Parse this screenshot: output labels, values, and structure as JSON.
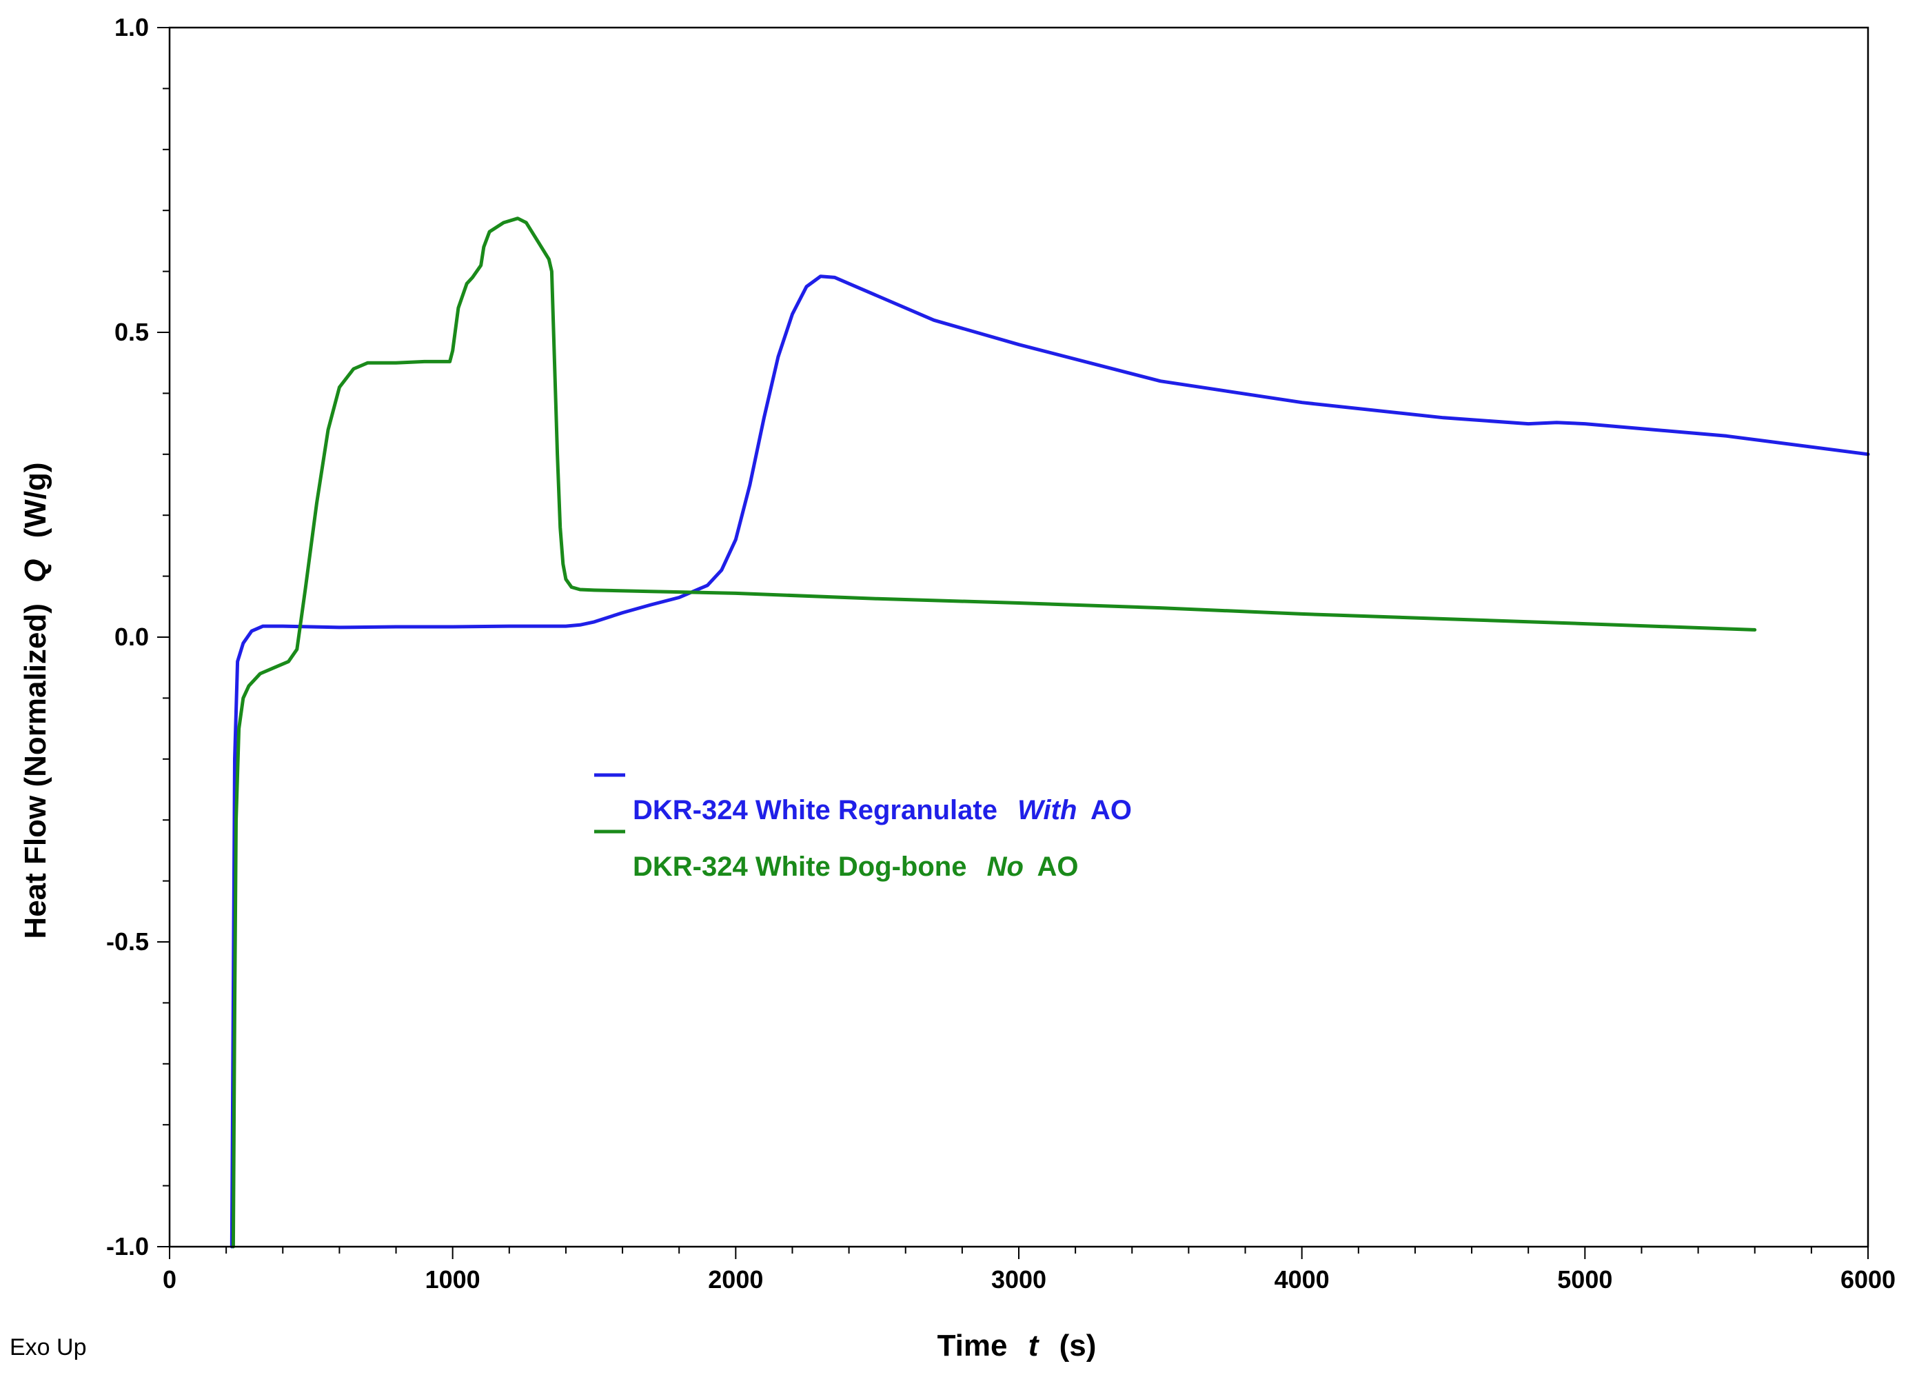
{
  "chart_data": {
    "type": "line",
    "xlabel_prefix": "Time",
    "xlabel_var": "t",
    "xlabel_unit": "(s)",
    "ylabel_prefix": "Heat Flow",
    "ylabel_mid": "(Normalized)",
    "ylabel_var": "Q",
    "ylabel_unit": "(W/g)",
    "xlim": [
      0,
      6000
    ],
    "ylim": [
      -1.0,
      1.0
    ],
    "x_ticks": [
      0,
      1000,
      2000,
      3000,
      4000,
      5000,
      6000
    ],
    "x_tick_labels": [
      "0",
      "1000",
      "2000",
      "3000",
      "4000",
      "5000",
      "6000"
    ],
    "y_ticks": [
      -1.0,
      -0.5,
      0.0,
      0.5,
      1.0
    ],
    "y_tick_labels": [
      "-1.0",
      "-0.5",
      "0.0",
      "0.5",
      "1.0"
    ],
    "note": "Exo Up",
    "series": [
      {
        "name": "DKR-324 White Regranulate With AO",
        "name_parts": [
          "DKR-324 White Regranulate",
          "With",
          "AO"
        ],
        "color": "#1f1fe8",
        "x": [
          220,
          225,
          230,
          240,
          260,
          290,
          330,
          400,
          600,
          800,
          1000,
          1200,
          1400,
          1450,
          1500,
          1600,
          1700,
          1800,
          1900,
          1950,
          2000,
          2050,
          2100,
          2150,
          2200,
          2250,
          2300,
          2350,
          2400,
          2500,
          2700,
          3000,
          3500,
          4000,
          4500,
          4800,
          4900,
          5000,
          5500,
          6000
        ],
        "y": [
          -1.0,
          -0.6,
          -0.2,
          -0.04,
          -0.01,
          0.01,
          0.018,
          0.018,
          0.016,
          0.017,
          0.017,
          0.018,
          0.018,
          0.02,
          0.025,
          0.04,
          0.053,
          0.065,
          0.085,
          0.11,
          0.16,
          0.25,
          0.36,
          0.46,
          0.53,
          0.575,
          0.592,
          0.59,
          0.58,
          0.56,
          0.52,
          0.48,
          0.42,
          0.385,
          0.36,
          0.35,
          0.352,
          0.35,
          0.33,
          0.3
        ]
      },
      {
        "name": "DKR-324 White Dog-bone No AO",
        "name_parts": [
          "DKR-324 White Dog-bone",
          "No",
          "AO"
        ],
        "color": "#1a8a1a",
        "x": [
          225,
          230,
          235,
          245,
          260,
          280,
          320,
          370,
          420,
          450,
          480,
          520,
          560,
          600,
          650,
          700,
          800,
          900,
          990,
          1000,
          1020,
          1050,
          1070,
          1100,
          1110,
          1130,
          1180,
          1230,
          1260,
          1300,
          1340,
          1350,
          1360,
          1370,
          1380,
          1390,
          1400,
          1420,
          1450,
          1500,
          1700,
          2000,
          2500,
          3000,
          3500,
          4000,
          4500,
          5000,
          5600
        ],
        "y": [
          -1.0,
          -0.6,
          -0.3,
          -0.15,
          -0.1,
          -0.08,
          -0.06,
          -0.05,
          -0.04,
          -0.02,
          0.08,
          0.22,
          0.34,
          0.41,
          0.44,
          0.45,
          0.45,
          0.452,
          0.452,
          0.47,
          0.54,
          0.58,
          0.59,
          0.61,
          0.64,
          0.665,
          0.68,
          0.687,
          0.68,
          0.65,
          0.62,
          0.6,
          0.45,
          0.3,
          0.18,
          0.12,
          0.095,
          0.082,
          0.078,
          0.077,
          0.075,
          0.072,
          0.063,
          0.056,
          0.048,
          0.038,
          0.03,
          0.022,
          0.012
        ]
      }
    ]
  }
}
